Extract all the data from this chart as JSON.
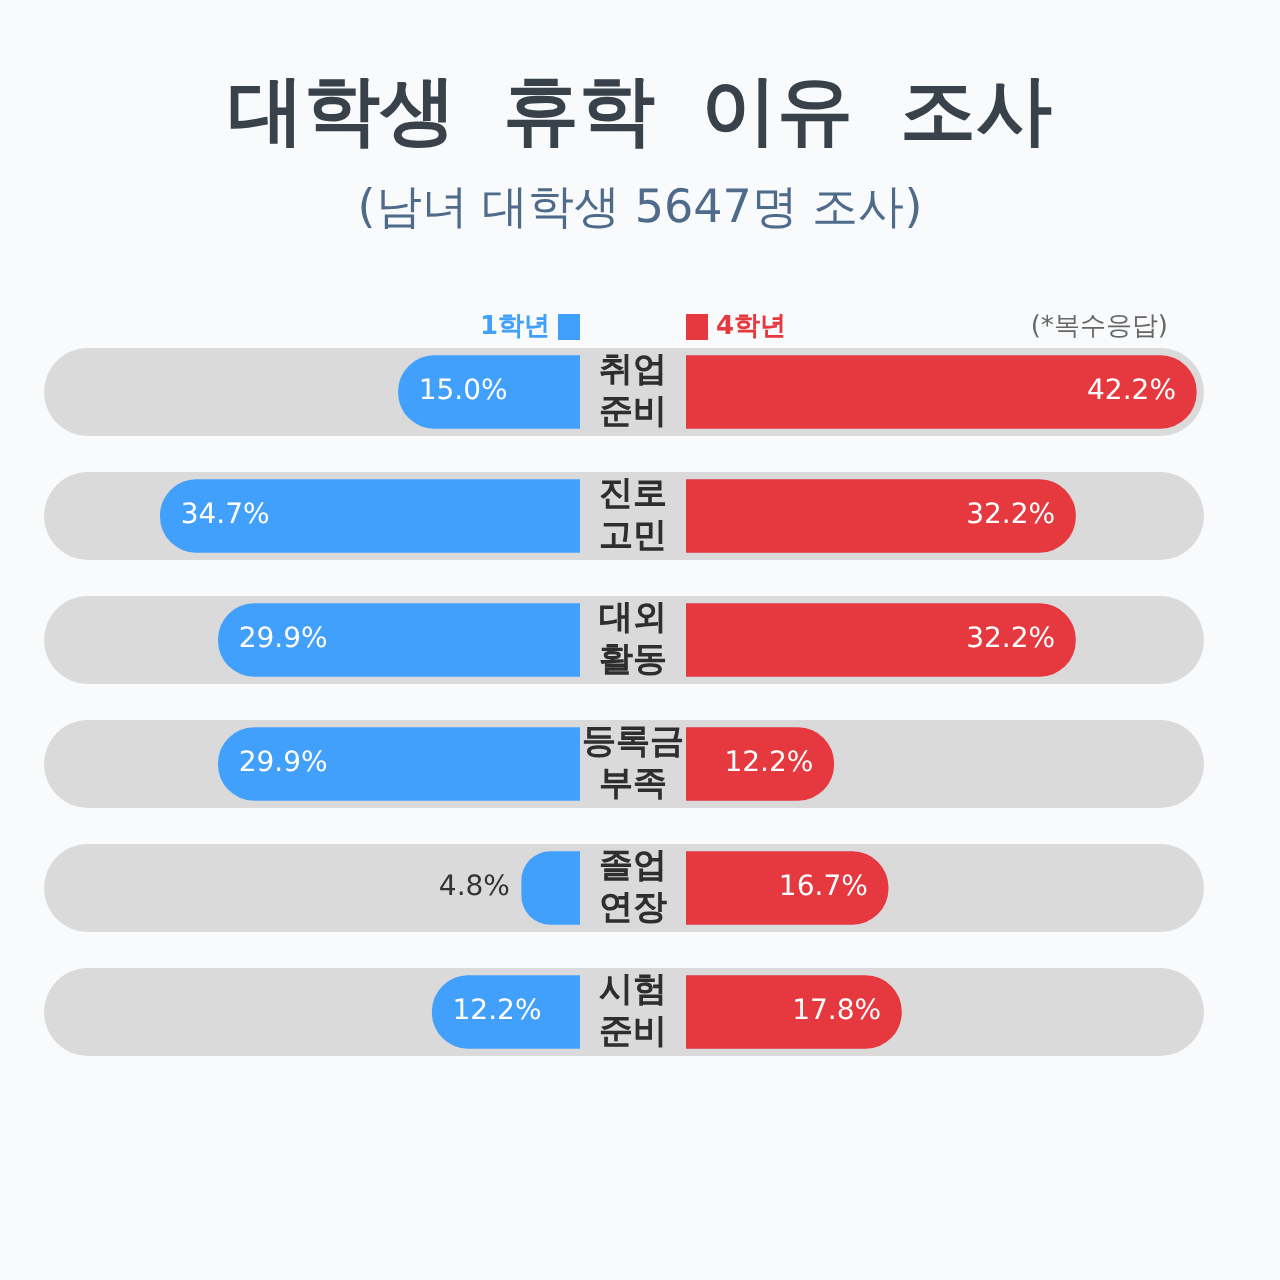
{
  "chart_data": [
    {
      "type": "bar",
      "orientation": "horizontal",
      "title": "대학생 휴학 이유 조사",
      "subtitle": "(남녀 대학생 5647명 조사)",
      "legend": "top",
      "tick_labels": "y",
      "categories": [
        "취업 준비",
        "진로 고민",
        "대외 활동",
        "등록금 부족",
        "졸업 연장",
        "시험 준비"
      ],
      "series": [
        {
          "name": "1학년",
          "color": "#42a0fd",
          "values": [
            15.0,
            34.7,
            29.9,
            29.9,
            4.8,
            12.2
          ],
          "value_labels": [
            "15.0%",
            "34.7%",
            "29.9%",
            "29.9%",
            "4.8%",
            "12.2%"
          ]
        }
      ]
    },
    {
      "type": "bar",
      "orientation": "horizontal",
      "annotations": [
        "(*복수응답)"
      ],
      "legend": "top",
      "tick_labels": false,
      "categories": [
        null,
        null,
        null,
        null,
        null,
        null
      ],
      "series": [
        {
          "name": "4학년",
          "color": "#e5393f",
          "values": [
            42.2,
            32.2,
            32.2,
            12.2,
            16.7,
            17.8
          ],
          "value_labels": [
            "42.2%",
            "32.2%",
            "32.2%",
            "12.2%",
            "16.7%",
            "17.8%"
          ]
        }
      ]
    }
  ]
}
